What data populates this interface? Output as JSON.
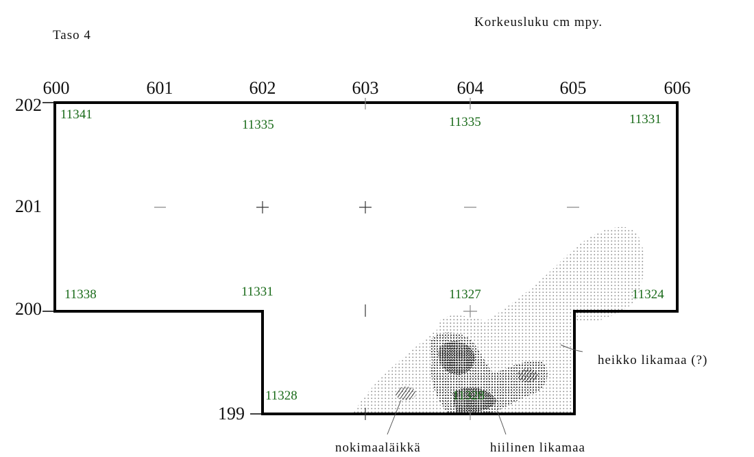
{
  "header": {
    "level_label": "Taso 4",
    "legend_title": "Korkeusluku cm mpy."
  },
  "x_axis": [
    "600",
    "601",
    "602",
    "603",
    "604",
    "605",
    "606"
  ],
  "y_axis": [
    "202",
    "201",
    "200",
    "199"
  ],
  "elevations": [
    "11341",
    "11335",
    "11335",
    "11331",
    "11338",
    "11331",
    "11327",
    "11324",
    "11328",
    "11328"
  ],
  "annotations": {
    "weak_soil": "heikko likamaa (?)",
    "soot_spot": "nokimaaläikkä",
    "charcoal_soil": "hiilinen likamaa"
  },
  "colors": {
    "outline": "#000000",
    "elevation_text": "#1a6b1a",
    "light_stipple": "#9a9a9a",
    "dark_stipple": "#333333"
  }
}
